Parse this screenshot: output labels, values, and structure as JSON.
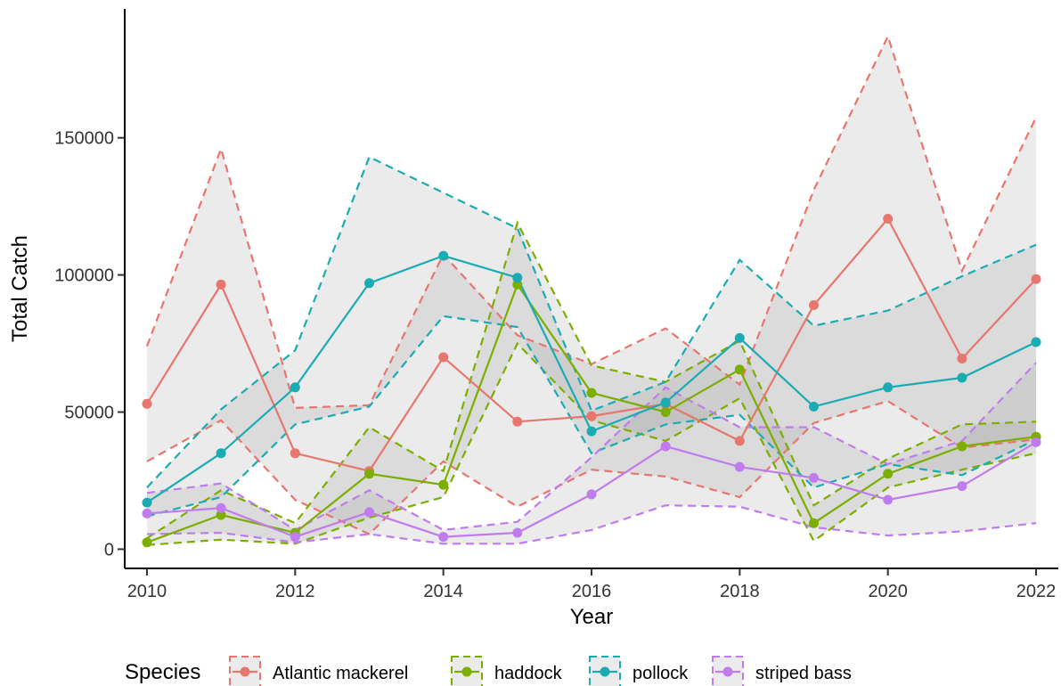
{
  "chart_data": {
    "type": "line",
    "xlabel": "Year",
    "ylabel": "Total Catch",
    "xlim": [
      2009.7,
      2022.3
    ],
    "ylim": [
      -7000,
      197000
    ],
    "xticks": [
      2010,
      2012,
      2014,
      2016,
      2018,
      2020,
      2022
    ],
    "yticks": [
      0,
      50000,
      100000,
      150000
    ],
    "ytick_labels": [
      "0",
      "50000",
      "100000",
      "150000"
    ],
    "x": [
      2010,
      2011,
      2012,
      2013,
      2014,
      2015,
      2016,
      2017,
      2018,
      2019,
      2020,
      2021,
      2022
    ],
    "legend": {
      "title": "Species",
      "position": "bottom"
    },
    "series": [
      {
        "name": "Atlantic mackerel",
        "color": "#E7766E",
        "values": [
          53000,
          96500,
          35000,
          28500,
          70000,
          46500,
          48500,
          53000,
          39500,
          89000,
          120500,
          69500,
          98500
        ],
        "upper": [
          74000,
          146000,
          51500,
          52500,
          107500,
          78000,
          67500,
          80500,
          60000,
          131000,
          187000,
          101500,
          157500
        ],
        "lower": [
          32000,
          47000,
          18000,
          5500,
          32000,
          15500,
          29000,
          26500,
          19000,
          46000,
          54000,
          37000,
          40000
        ]
      },
      {
        "name": "haddock",
        "color": "#7CAE00",
        "values": [
          2500,
          12500,
          6000,
          27500,
          23500,
          96500,
          57000,
          50000,
          65500,
          9500,
          27500,
          37500,
          41000
        ],
        "upper": [
          4000,
          21500,
          9500,
          44500,
          28500,
          119000,
          67000,
          61000,
          76000,
          16000,
          33000,
          45500,
          46500
        ],
        "lower": [
          1500,
          3500,
          2000,
          11500,
          19000,
          75000,
          47000,
          39500,
          55000,
          3000,
          22500,
          29000,
          35000
        ]
      },
      {
        "name": "pollock",
        "color": "#1BABB3",
        "values": [
          17000,
          35000,
          59000,
          97000,
          107000,
          99000,
          43000,
          53500,
          77000,
          52000,
          59000,
          62500,
          75500
        ],
        "upper": [
          22500,
          51000,
          72500,
          143000,
          130000,
          117000,
          50500,
          61000,
          105500,
          81500,
          87000,
          99500,
          111000
        ],
        "lower": [
          12000,
          19000,
          45500,
          52000,
          85000,
          81000,
          35000,
          45500,
          49000,
          22500,
          31000,
          27000,
          40000
        ]
      },
      {
        "name": "striped bass",
        "color": "#C07BEE",
        "values": [
          13000,
          15000,
          4500,
          13500,
          4500,
          6000,
          20000,
          37500,
          30000,
          26000,
          18000,
          23000,
          39000
        ],
        "upper": [
          20500,
          24000,
          7000,
          21500,
          7000,
          10000,
          33500,
          59000,
          44500,
          44500,
          31000,
          39500,
          68000
        ],
        "lower": [
          5500,
          6000,
          2500,
          5500,
          2000,
          2000,
          7000,
          16000,
          15500,
          8000,
          5000,
          6500,
          9500
        ]
      }
    ]
  }
}
